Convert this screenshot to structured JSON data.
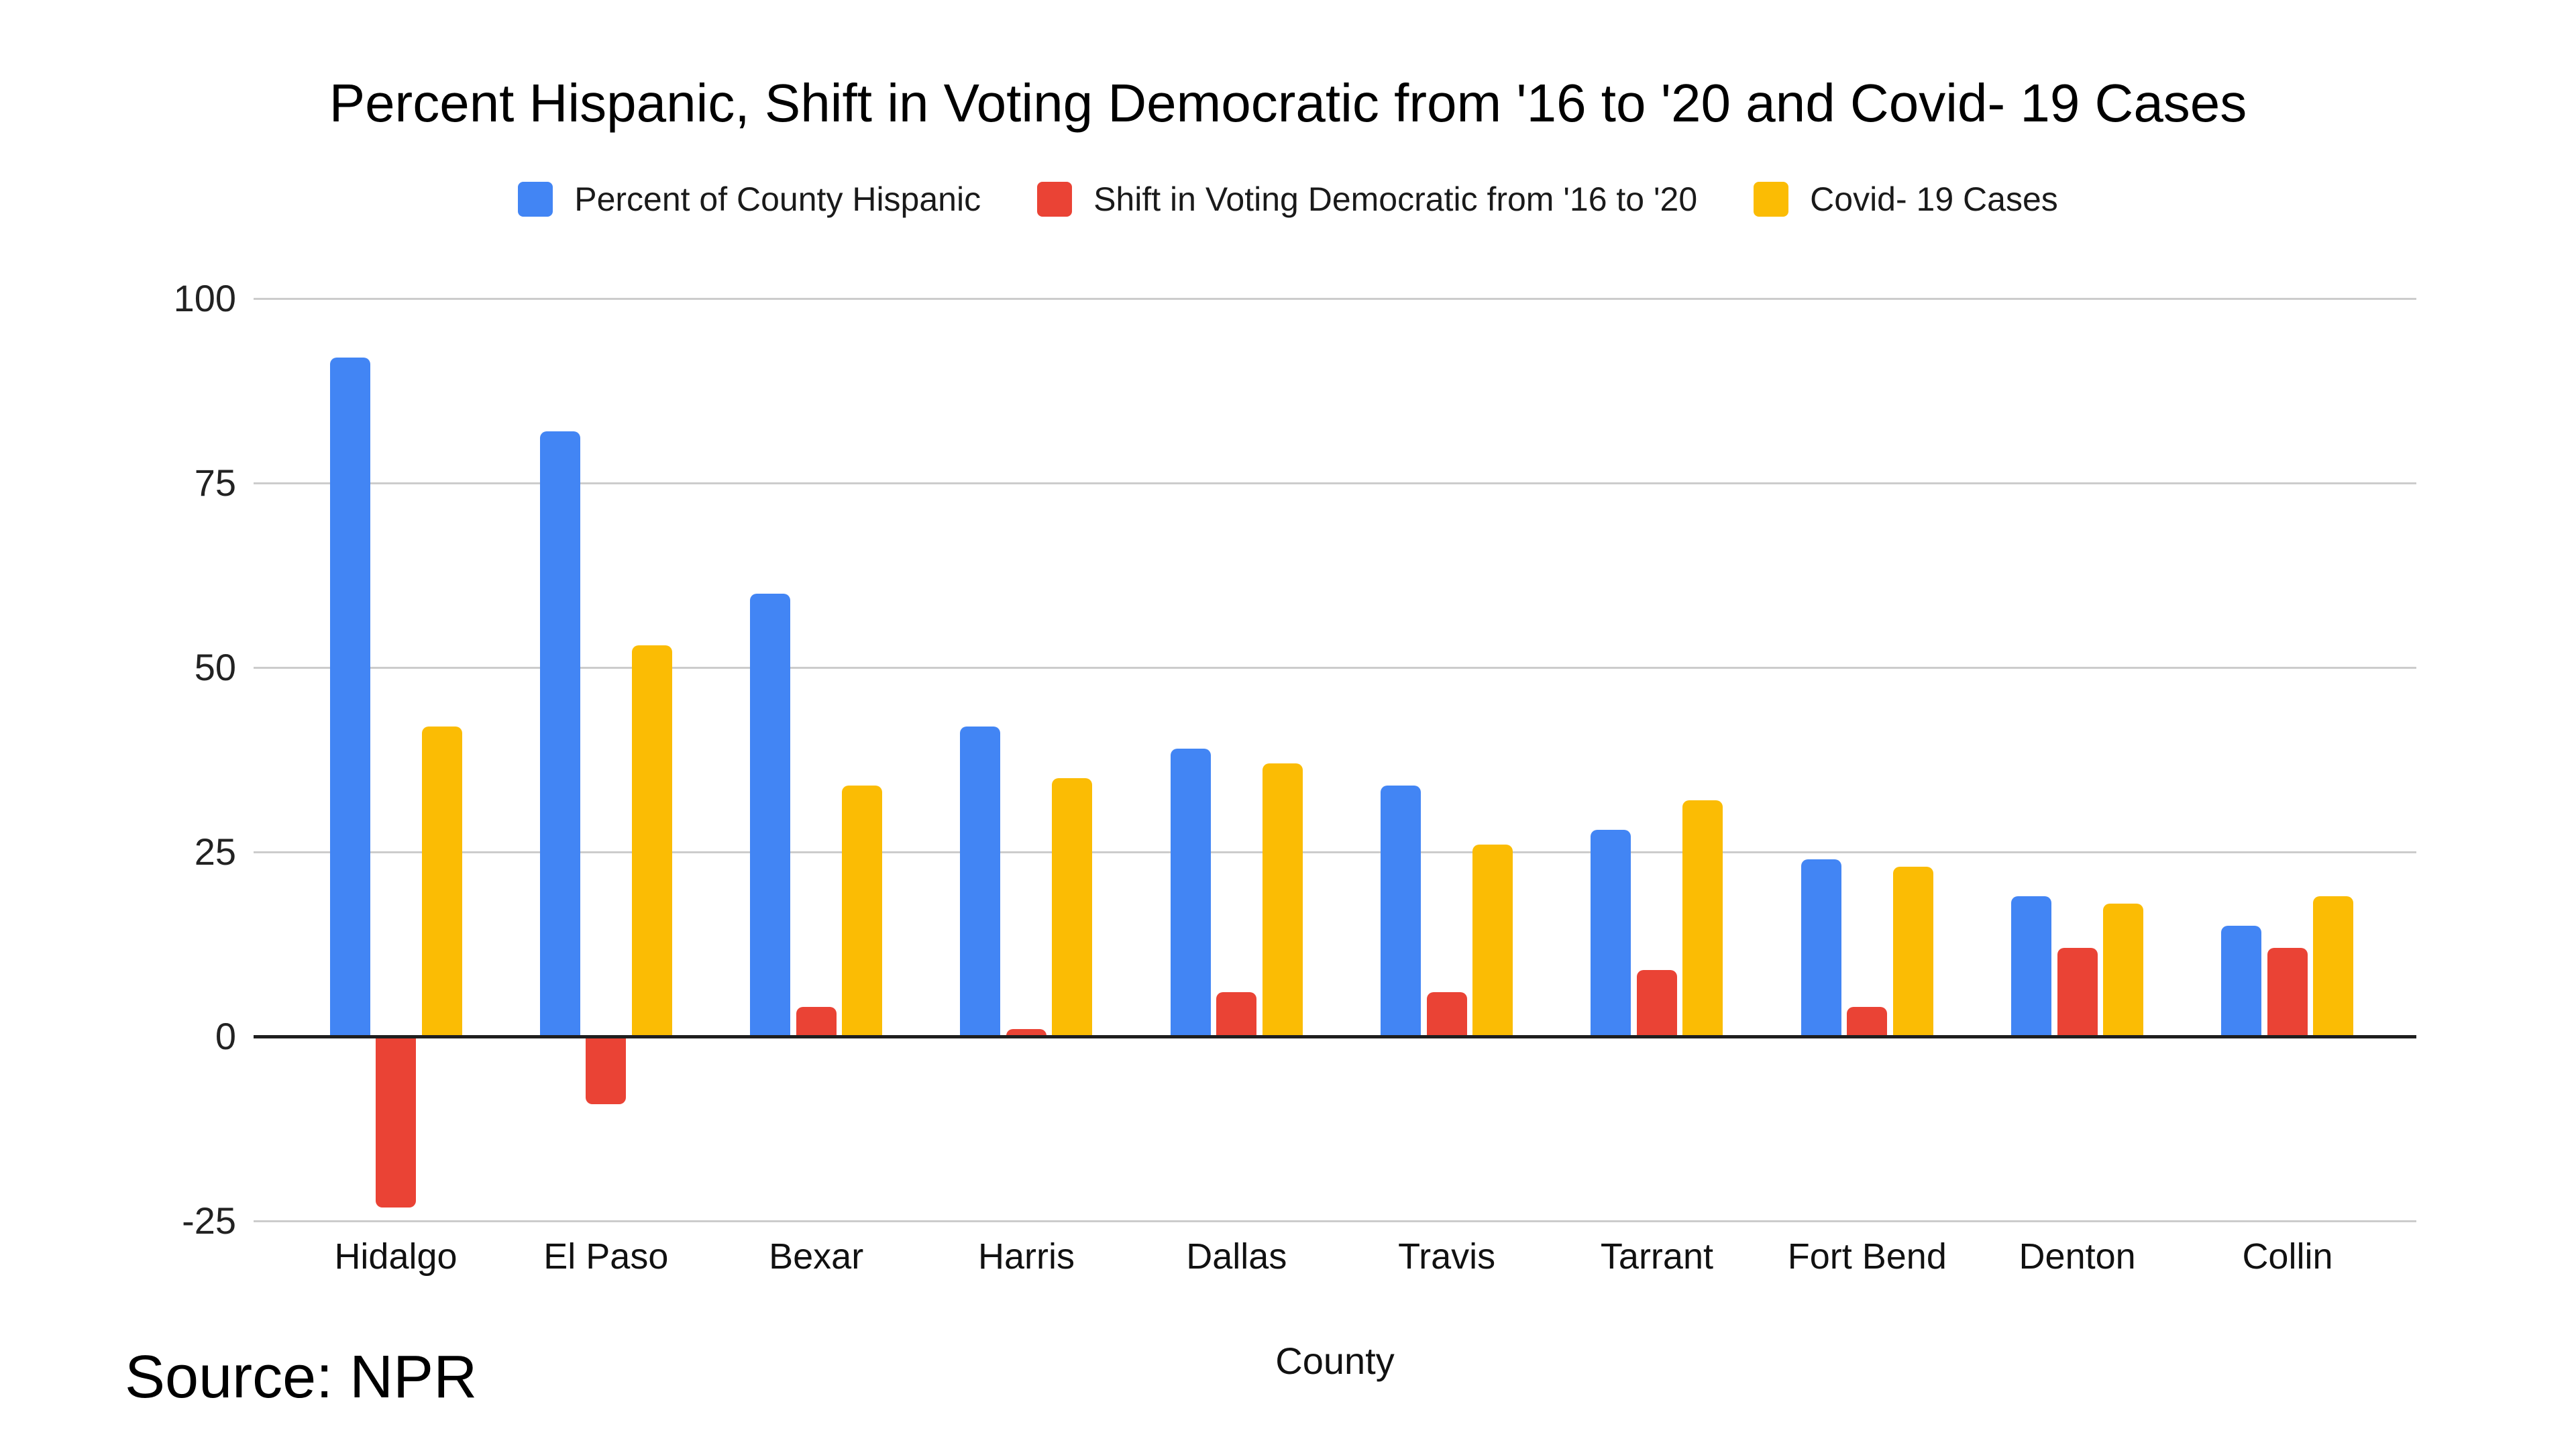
{
  "source": {
    "label": "Source: NPR"
  },
  "chart_data": {
    "type": "bar",
    "title": "Percent Hispanic, Shift in Voting Democratic from '16 to '20 and Covid- 19 Cases",
    "xlabel": "County",
    "ylabel": "",
    "categories": [
      "Hidalgo",
      "El Paso",
      "Bexar",
      "Harris",
      "Dallas",
      "Travis",
      "Tarrant",
      "Fort Bend",
      "Denton",
      "Collin"
    ],
    "series": [
      {
        "name": "Percent of County Hispanic",
        "color": "#4285F4",
        "values": [
          92,
          82,
          60,
          42,
          39,
          34,
          28,
          24,
          19,
          15
        ]
      },
      {
        "name": "Shift in Voting Democratic from '16 to '20",
        "color": "#EA4335",
        "values": [
          -23,
          -9,
          4,
          1,
          6,
          6,
          9,
          4,
          12,
          12
        ]
      },
      {
        "name": "Covid- 19 Cases",
        "color": "#FBBC04",
        "values": [
          42,
          53,
          34,
          35,
          37,
          26,
          32,
          23,
          18,
          19
        ]
      }
    ],
    "yticks": [
      100,
      75,
      50,
      25,
      0,
      -25
    ],
    "ylim": [
      -25,
      100
    ],
    "grid": true,
    "legend_position": "top",
    "gridline_color": "#cccccc",
    "axis_line_color": "#1f1f1f",
    "background_color": "#ffffff"
  }
}
